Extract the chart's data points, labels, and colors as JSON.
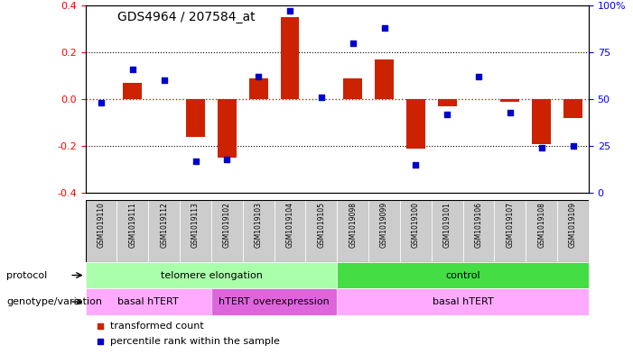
{
  "title": "GDS4964 / 207584_at",
  "samples": [
    "GSM1019110",
    "GSM1019111",
    "GSM1019112",
    "GSM1019113",
    "GSM1019102",
    "GSM1019103",
    "GSM1019104",
    "GSM1019105",
    "GSM1019098",
    "GSM1019099",
    "GSM1019100",
    "GSM1019101",
    "GSM1019106",
    "GSM1019107",
    "GSM1019108",
    "GSM1019109"
  ],
  "bar_values": [
    0.0,
    0.07,
    0.0,
    -0.16,
    -0.25,
    0.09,
    0.35,
    0.0,
    0.09,
    0.17,
    -0.21,
    -0.03,
    0.0,
    -0.01,
    -0.19,
    -0.08
  ],
  "dot_values": [
    48,
    66,
    60,
    17,
    18,
    62,
    97,
    51,
    80,
    88,
    15,
    42,
    62,
    43,
    24,
    25
  ],
  "ylim_left": [
    -0.4,
    0.4
  ],
  "ylim_right": [
    0,
    100
  ],
  "left_ticks": [
    -0.4,
    -0.2,
    0.0,
    0.2,
    0.4
  ],
  "right_ticks": [
    0,
    25,
    50,
    75,
    100
  ],
  "right_tick_labels": [
    "0",
    "25",
    "50",
    "75",
    "100%"
  ],
  "bar_color": "#cc2200",
  "dot_color": "#0000cc",
  "zero_line_color": "#cc2200",
  "protocol_groups": [
    {
      "label": "telomere elongation",
      "start": 0,
      "end": 8,
      "color": "#aaffaa"
    },
    {
      "label": "control",
      "start": 8,
      "end": 16,
      "color": "#44dd44"
    }
  ],
  "genotype_groups": [
    {
      "label": "basal hTERT",
      "start": 0,
      "end": 4,
      "color": "#ffaaff"
    },
    {
      "label": "hTERT overexpression",
      "start": 4,
      "end": 8,
      "color": "#dd66dd"
    },
    {
      "label": "basal hTERT",
      "start": 8,
      "end": 16,
      "color": "#ffaaff"
    }
  ],
  "protocol_label": "protocol",
  "genotype_label": "genotype/variation",
  "legend_bar_label": "transformed count",
  "legend_dot_label": "percentile rank within the sample",
  "sample_bg_color": "#cccccc",
  "fig_bg_color": "#ffffff"
}
